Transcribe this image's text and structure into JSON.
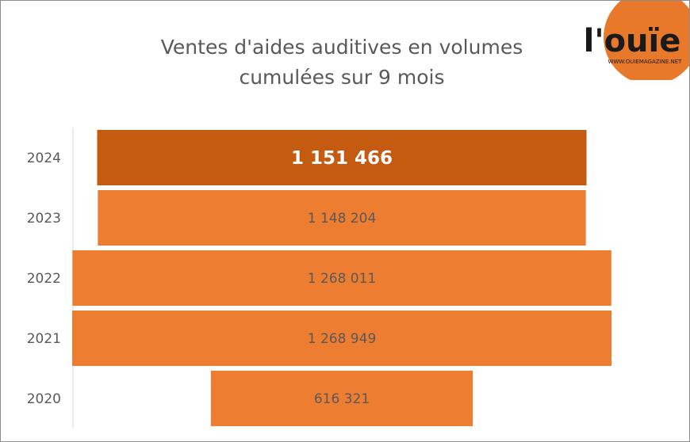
{
  "chart_data": {
    "type": "bar",
    "orientation": "horizontal-centered",
    "title_lines": [
      "Ventes d'aides auditives en volumes",
      "cumulées sur 9 mois"
    ],
    "categories": [
      "2024",
      "2023",
      "2022",
      "2021",
      "2020"
    ],
    "values": [
      1151466,
      1148204,
      1268011,
      1268949,
      616321
    ],
    "value_labels": [
      "1 151 466",
      "1 148 204",
      "1 268 011",
      "1 268 949",
      "616 321"
    ],
    "highlight_index": 0,
    "colors": {
      "bar": "#ED7D31",
      "highlight": "#C55A11",
      "label": "#595959",
      "highlight_label": "#ffffff"
    },
    "xlim": [
      0,
      1268949
    ],
    "grid": false,
    "legend": "none"
  },
  "logo": {
    "text": "l'ouïe",
    "url_text": "WWW.OUIEMAGAZINE.NET",
    "colors": {
      "circle": "#E8792B",
      "text": "#1a1a1a"
    }
  }
}
